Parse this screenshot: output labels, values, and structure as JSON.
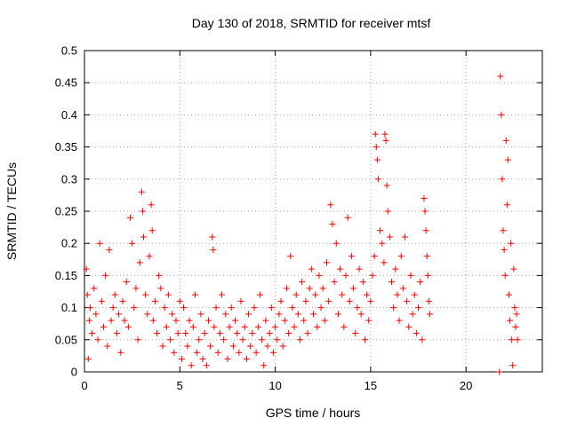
{
  "chart_data": {
    "type": "scatter",
    "title": "Day 130 of 2018, SRMTID for receiver mtsf",
    "xlabel": "GPS time / hours",
    "ylabel": "SRMTID / TECUs",
    "xlim": [
      0,
      24
    ],
    "ylim": [
      0,
      0.5
    ],
    "x_ticks": [
      0,
      5,
      10,
      15,
      20
    ],
    "y_ticks": [
      0,
      0.05,
      0.1,
      0.15,
      0.2,
      0.25,
      0.3,
      0.35,
      0.4,
      0.45,
      0.5
    ],
    "x_tick_labels": [
      "0",
      "5",
      "10",
      "15",
      "20"
    ],
    "y_tick_labels": [
      "0",
      "0.05",
      "0.1",
      "0.15",
      "0.2",
      "0.25",
      "0.3",
      "0.35",
      "0.4",
      "0.45",
      "0.5"
    ],
    "grid": true,
    "marker": "plus",
    "color": "#ff0000",
    "series": [
      {
        "points": [
          [
            0.1,
            0.16
          ],
          [
            0.15,
            0.12
          ],
          [
            0.2,
            0.02
          ],
          [
            0.25,
            0.08
          ],
          [
            0.3,
            0.1
          ],
          [
            0.4,
            0.06
          ],
          [
            0.5,
            0.13
          ],
          [
            0.6,
            0.09
          ],
          [
            0.7,
            0.05
          ],
          [
            0.8,
            0.2
          ],
          [
            0.9,
            0.11
          ],
          [
            1.0,
            0.07
          ],
          [
            1.1,
            0.15
          ],
          [
            1.2,
            0.04
          ],
          [
            1.3,
            0.19
          ],
          [
            1.4,
            0.08
          ],
          [
            1.5,
            0.1
          ],
          [
            1.6,
            0.12
          ],
          [
            1.7,
            0.06
          ],
          [
            1.8,
            0.09
          ],
          [
            1.9,
            0.03
          ],
          [
            2.0,
            0.11
          ],
          [
            2.1,
            0.08
          ],
          [
            2.2,
            0.14
          ],
          [
            2.3,
            0.07
          ],
          [
            2.4,
            0.24
          ],
          [
            2.5,
            0.2
          ],
          [
            2.6,
            0.1
          ],
          [
            2.7,
            0.13
          ],
          [
            2.8,
            0.05
          ],
          [
            2.9,
            0.17
          ],
          [
            3.0,
            0.28
          ],
          [
            3.05,
            0.25
          ],
          [
            3.1,
            0.21
          ],
          [
            3.2,
            0.12
          ],
          [
            3.3,
            0.09
          ],
          [
            3.4,
            0.18
          ],
          [
            3.5,
            0.26
          ],
          [
            3.55,
            0.22
          ],
          [
            3.6,
            0.08
          ],
          [
            3.7,
            0.11
          ],
          [
            3.8,
            0.06
          ],
          [
            3.9,
            0.15
          ],
          [
            4.0,
            0.13
          ],
          [
            4.1,
            0.04
          ],
          [
            4.2,
            0.1
          ],
          [
            4.3,
            0.07
          ],
          [
            4.4,
            0.12
          ],
          [
            4.5,
            0.05
          ],
          [
            4.6,
            0.09
          ],
          [
            4.7,
            0.03
          ],
          [
            4.8,
            0.08
          ],
          [
            4.9,
            0.06
          ],
          [
            5.0,
            0.11
          ],
          [
            5.1,
            0.02
          ],
          [
            5.2,
            0.1
          ],
          [
            5.3,
            0.06
          ],
          [
            5.4,
            0.04
          ],
          [
            5.5,
            0.08
          ],
          [
            5.6,
            0.01
          ],
          [
            5.7,
            0.07
          ],
          [
            5.8,
            0.12
          ],
          [
            5.9,
            0.03
          ],
          [
            6.0,
            0.05
          ],
          [
            6.1,
            0.09
          ],
          [
            6.2,
            0.02
          ],
          [
            6.3,
            0.06
          ],
          [
            6.4,
            0.01
          ],
          [
            6.5,
            0.08
          ],
          [
            6.6,
            0.04
          ],
          [
            6.7,
            0.21
          ],
          [
            6.75,
            0.19
          ],
          [
            6.8,
            0.07
          ],
          [
            6.9,
            0.1
          ],
          [
            7.0,
            0.03
          ],
          [
            7.1,
            0.06
          ],
          [
            7.2,
            0.12
          ],
          [
            7.3,
            0.05
          ],
          [
            7.4,
            0.09
          ],
          [
            7.5,
            0.02
          ],
          [
            7.6,
            0.07
          ],
          [
            7.7,
            0.1
          ],
          [
            7.8,
            0.04
          ],
          [
            7.9,
            0.08
          ],
          [
            8.0,
            0.06
          ],
          [
            8.1,
            0.03
          ],
          [
            8.2,
            0.11
          ],
          [
            8.3,
            0.05
          ],
          [
            8.4,
            0.07
          ],
          [
            8.5,
            0.02
          ],
          [
            8.6,
            0.09
          ],
          [
            8.7,
            0.04
          ],
          [
            8.8,
            0.06
          ],
          [
            8.9,
            0.1
          ],
          [
            9.0,
            0.03
          ],
          [
            9.1,
            0.07
          ],
          [
            9.2,
            0.12
          ],
          [
            9.3,
            0.05
          ],
          [
            9.4,
            0.01
          ],
          [
            9.5,
            0.08
          ],
          [
            9.6,
            0.04
          ],
          [
            9.7,
            0.06
          ],
          [
            9.8,
            0.1
          ],
          [
            9.9,
            0.03
          ],
          [
            10.0,
            0.07
          ],
          [
            10.1,
            0.05
          ],
          [
            10.2,
            0.09
          ],
          [
            10.3,
            0.11
          ],
          [
            10.4,
            0.04
          ],
          [
            10.5,
            0.08
          ],
          [
            10.6,
            0.13
          ],
          [
            10.7,
            0.06
          ],
          [
            10.8,
            0.18
          ],
          [
            10.9,
            0.1
          ],
          [
            11.0,
            0.07
          ],
          [
            11.1,
            0.12
          ],
          [
            11.2,
            0.09
          ],
          [
            11.3,
            0.05
          ],
          [
            11.4,
            0.14
          ],
          [
            11.5,
            0.08
          ],
          [
            11.6,
            0.11
          ],
          [
            11.7,
            0.06
          ],
          [
            11.8,
            0.13
          ],
          [
            11.9,
            0.16
          ],
          [
            12.0,
            0.09
          ],
          [
            12.1,
            0.12
          ],
          [
            12.2,
            0.07
          ],
          [
            12.3,
            0.15
          ],
          [
            12.4,
            0.1
          ],
          [
            12.5,
            0.13
          ],
          [
            12.6,
            0.08
          ],
          [
            12.7,
            0.17
          ],
          [
            12.8,
            0.11
          ],
          [
            12.9,
            0.26
          ],
          [
            13.0,
            0.23
          ],
          [
            13.1,
            0.14
          ],
          [
            13.2,
            0.2
          ],
          [
            13.3,
            0.09
          ],
          [
            13.4,
            0.16
          ],
          [
            13.5,
            0.12
          ],
          [
            13.6,
            0.07
          ],
          [
            13.7,
            0.15
          ],
          [
            13.8,
            0.24
          ],
          [
            13.9,
            0.11
          ],
          [
            14.0,
            0.18
          ],
          [
            14.1,
            0.13
          ],
          [
            14.2,
            0.06
          ],
          [
            14.3,
            0.1
          ],
          [
            14.4,
            0.16
          ],
          [
            14.5,
            0.09
          ],
          [
            14.6,
            0.14
          ],
          [
            14.7,
            0.05
          ],
          [
            14.8,
            0.12
          ],
          [
            14.9,
            0.08
          ],
          [
            15.0,
            0.11
          ],
          [
            15.1,
            0.15
          ],
          [
            15.2,
            0.18
          ],
          [
            15.25,
            0.37
          ],
          [
            15.3,
            0.35
          ],
          [
            15.35,
            0.33
          ],
          [
            15.4,
            0.3
          ],
          [
            15.5,
            0.22
          ],
          [
            15.6,
            0.2
          ],
          [
            15.7,
            0.17
          ],
          [
            15.75,
            0.37
          ],
          [
            15.8,
            0.36
          ],
          [
            15.85,
            0.29
          ],
          [
            15.9,
            0.25
          ],
          [
            16.0,
            0.21
          ],
          [
            16.1,
            0.14
          ],
          [
            16.2,
            0.1
          ],
          [
            16.3,
            0.16
          ],
          [
            16.4,
            0.12
          ],
          [
            16.5,
            0.08
          ],
          [
            16.6,
            0.18
          ],
          [
            16.7,
            0.13
          ],
          [
            16.8,
            0.21
          ],
          [
            16.9,
            0.11
          ],
          [
            17.0,
            0.07
          ],
          [
            17.1,
            0.15
          ],
          [
            17.2,
            0.09
          ],
          [
            17.3,
            0.12
          ],
          [
            17.4,
            0.06
          ],
          [
            17.5,
            0.1
          ],
          [
            17.6,
            0.14
          ],
          [
            17.7,
            0.05
          ],
          [
            17.8,
            0.27
          ],
          [
            17.85,
            0.25
          ],
          [
            17.9,
            0.22
          ],
          [
            17.95,
            0.18
          ],
          [
            18.0,
            0.15
          ],
          [
            18.05,
            0.11
          ],
          [
            18.1,
            0.09
          ],
          [
            21.75,
            0.0
          ],
          [
            21.8,
            0.46
          ],
          [
            21.85,
            0.4
          ],
          [
            21.9,
            0.3
          ],
          [
            21.95,
            0.22
          ],
          [
            22.0,
            0.19
          ],
          [
            22.05,
            0.15
          ],
          [
            22.1,
            0.36
          ],
          [
            22.15,
            0.26
          ],
          [
            22.2,
            0.33
          ],
          [
            22.25,
            0.12
          ],
          [
            22.3,
            0.08
          ],
          [
            22.35,
            0.2
          ],
          [
            22.4,
            0.05
          ],
          [
            22.45,
            0.01
          ],
          [
            22.5,
            0.16
          ],
          [
            22.55,
            0.1
          ],
          [
            22.6,
            0.07
          ],
          [
            22.65,
            0.09
          ],
          [
            22.7,
            0.05
          ]
        ]
      }
    ]
  }
}
